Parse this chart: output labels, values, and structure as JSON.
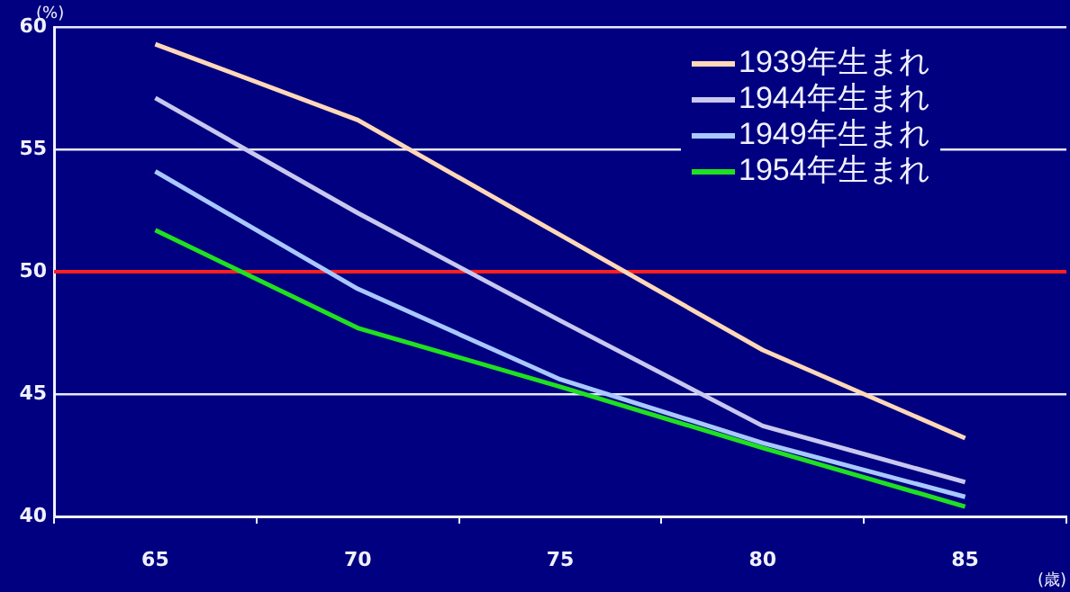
{
  "chart_data": {
    "type": "line",
    "xlabel": "(歳)",
    "ylabel": "(%)",
    "categories": [
      "65",
      "70",
      "75",
      "80",
      "85"
    ],
    "series": [
      {
        "name": "1939年生まれ",
        "color": "#ffd8b8",
        "values": [
          59.3,
          56.2,
          51.5,
          46.8,
          43.2
        ]
      },
      {
        "name": "1944年生まれ",
        "color": "#c8c8f0",
        "values": [
          57.1,
          52.4,
          48.0,
          43.7,
          41.4
        ]
      },
      {
        "name": "1949年生まれ",
        "color": "#a8c8ff",
        "values": [
          54.1,
          49.3,
          45.6,
          43.0,
          40.8
        ]
      },
      {
        "name": "1954年生まれ",
        "color": "#20e020",
        "values": [
          51.7,
          47.7,
          45.3,
          42.8,
          40.4
        ]
      }
    ],
    "ylim": [
      40,
      60
    ],
    "yticks": [
      40,
      45,
      50,
      55,
      60
    ],
    "grid": "y",
    "legend": "top right",
    "marker": "none",
    "line_style": "solid",
    "ref_lines": [
      {
        "axis": "y",
        "value": 50,
        "color": "#ff2020"
      }
    ]
  }
}
